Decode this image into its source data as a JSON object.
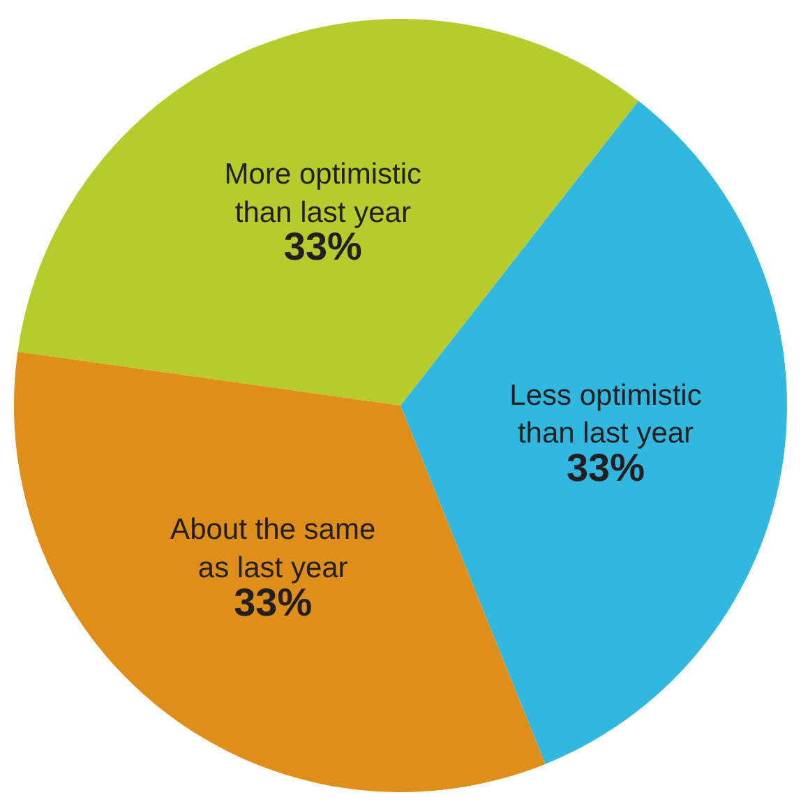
{
  "chart_data": {
    "type": "pie",
    "categories": [
      "More optimistic\nthan last year",
      "Less optimistic\nthan last year",
      "About the same\nas last year"
    ],
    "values": [
      33,
      33,
      33
    ],
    "value_labels": [
      "33%",
      "33%",
      "33%"
    ],
    "colors": [
      "#b7cb2c",
      "#32b8e0",
      "#de8e19"
    ],
    "legend": false
  }
}
